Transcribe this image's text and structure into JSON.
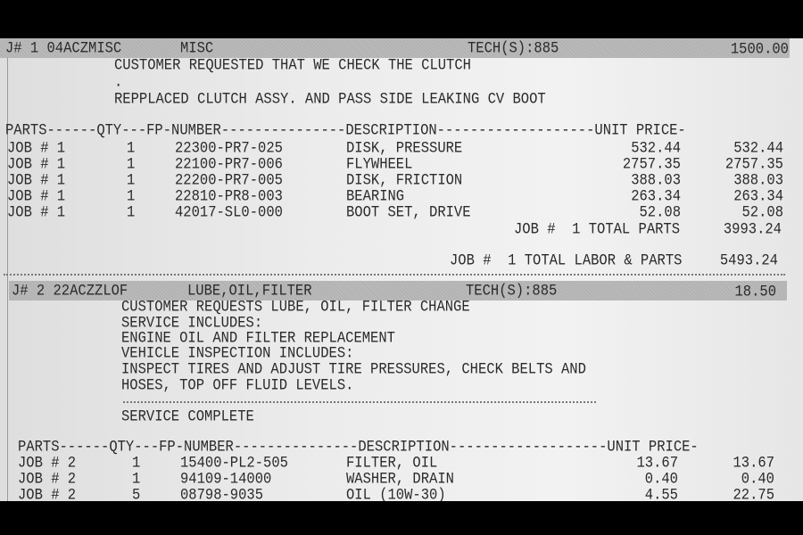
{
  "jobs": [
    {
      "header": {
        "job": "J# 1 04ACZMISC",
        "op": "MISC",
        "tech": "TECH(S):885",
        "amount": "1500.00"
      },
      "notes": [
        "CUSTOMER REQUESTED THAT WE CHECK THE CLUTCH",
        ".",
        "REPPLACED CLUTCH ASSY. AND PASS SIDE LEAKING CV BOOT"
      ],
      "parts_header": "PARTS------QTY---FP-NUMBER---------------DESCRIPTION-------------------UNIT PRICE-",
      "parts": [
        {
          "job": "JOB # 1",
          "qty": "1",
          "number": "22300-PR7-025",
          "description": "DISK, PRESSURE",
          "unit_price": "532.44",
          "total": "532.44"
        },
        {
          "job": "JOB # 1",
          "qty": "1",
          "number": "22100-PR7-006",
          "description": "FLYWHEEL",
          "unit_price": "2757.35",
          "total": "2757.35"
        },
        {
          "job": "JOB # 1",
          "qty": "1",
          "number": "22200-PR7-005",
          "description": "DISK, FRICTION",
          "unit_price": "388.03",
          "total": "388.03"
        },
        {
          "job": "JOB # 1",
          "qty": "1",
          "number": "22810-PR8-003",
          "description": "BEARING",
          "unit_price": "263.34",
          "total": "263.34"
        },
        {
          "job": "JOB # 1",
          "qty": "1",
          "number": "42017-SL0-000",
          "description": "BOOT SET, DRIVE",
          "unit_price": "52.08",
          "total": "52.08"
        }
      ],
      "total_parts_label": "JOB #  1 TOTAL PARTS",
      "total_parts": "3993.24",
      "total_labor_parts_label": "JOB #  1 TOTAL LABOR & PARTS",
      "total_labor_parts": "5493.24"
    },
    {
      "header": {
        "job": "J# 2 22ACZZLOF",
        "op": "LUBE,OIL,FILTER",
        "tech": "TECH(S):885",
        "amount": "18.50"
      },
      "notes": [
        "CUSTOMER REQUESTS LUBE, OIL, FILTER CHANGE",
        "SERVICE INCLUDES:",
        "ENGINE OIL AND FILTER REPLACEMENT",
        "VEHICLE INSPECTION INCLUDES:",
        "INSPECT TIRES AND ADJUST TIRE PRESSURES, CHECK BELTS AND",
        "HOSES, TOP OFF FLUID LEVELS."
      ],
      "status": "SERVICE COMPLETE",
      "parts_header": "PARTS------QTY---FP-NUMBER---------------DESCRIPTION-------------------UNIT PRICE-",
      "parts": [
        {
          "job": "JOB # 2",
          "qty": "1",
          "number": "15400-PL2-505",
          "description": "FILTER, OIL",
          "unit_price": "13.67",
          "total": "13.67"
        },
        {
          "job": "JOB # 2",
          "qty": "1",
          "number": "94109-14000",
          "description": "WASHER, DRAIN",
          "unit_price": "0.40",
          "total": "0.40"
        },
        {
          "job": "JOB # 2",
          "qty": "5",
          "number": "08798-9035",
          "description": "OIL (10W-30)",
          "unit_price": "4.55",
          "total": "22.75"
        }
      ]
    }
  ]
}
